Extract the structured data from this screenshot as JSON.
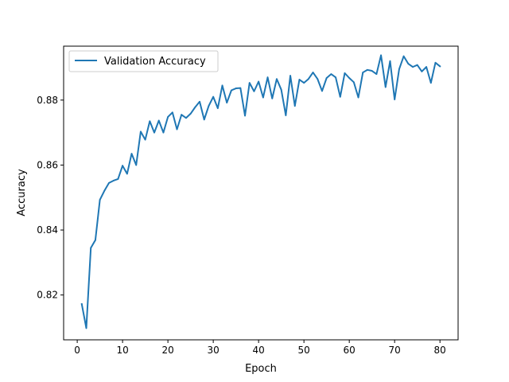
{
  "chart_data": {
    "type": "line",
    "title": "",
    "xlabel": "Epoch",
    "ylabel": "Accuracy",
    "xlim": [
      -3,
      84
    ],
    "ylim": [
      0.8062,
      0.8966
    ],
    "x_ticks": [
      0,
      10,
      20,
      30,
      40,
      50,
      60,
      70,
      80
    ],
    "y_ticks": [
      0.82,
      0.84,
      0.86,
      0.88
    ],
    "y_tick_labels": [
      "0.82",
      "0.84",
      "0.86",
      "0.88"
    ],
    "grid": false,
    "legend": {
      "position": "upper-left"
    },
    "series": [
      {
        "name": "Validation Accuracy",
        "color": "#1f77b4",
        "x": [
          1,
          2,
          3,
          4,
          5,
          6,
          7,
          8,
          9,
          10,
          11,
          12,
          13,
          14,
          15,
          16,
          17,
          18,
          19,
          20,
          21,
          22,
          23,
          24,
          25,
          26,
          27,
          28,
          29,
          30,
          31,
          32,
          33,
          34,
          35,
          36,
          37,
          38,
          39,
          40,
          41,
          42,
          43,
          44,
          45,
          46,
          47,
          48,
          49,
          50,
          51,
          52,
          53,
          54,
          55,
          56,
          57,
          58,
          59,
          60,
          61,
          62,
          63,
          64,
          65,
          66,
          67,
          68,
          69,
          70,
          71,
          72,
          73,
          74,
          75,
          76,
          77,
          78,
          79,
          80
        ],
        "values": [
          0.8172,
          0.8098,
          0.8345,
          0.8369,
          0.8493,
          0.8521,
          0.8545,
          0.8552,
          0.8557,
          0.8598,
          0.8573,
          0.8635,
          0.86,
          0.8703,
          0.8678,
          0.8735,
          0.87,
          0.8737,
          0.87,
          0.8748,
          0.8762,
          0.871,
          0.8755,
          0.8745,
          0.8758,
          0.8778,
          0.8795,
          0.874,
          0.8782,
          0.881,
          0.8775,
          0.8845,
          0.8792,
          0.883,
          0.8836,
          0.8837,
          0.8752,
          0.8853,
          0.8827,
          0.8857,
          0.8808,
          0.887,
          0.8805,
          0.8865,
          0.8832,
          0.8753,
          0.8875,
          0.8782,
          0.8863,
          0.8853,
          0.8865,
          0.8885,
          0.8865,
          0.8828,
          0.8868,
          0.888,
          0.887,
          0.881,
          0.8883,
          0.8868,
          0.8855,
          0.8808,
          0.8885,
          0.8893,
          0.889,
          0.888,
          0.8938,
          0.884,
          0.892,
          0.8802,
          0.8895,
          0.8935,
          0.8912,
          0.8902,
          0.8908,
          0.8888,
          0.8902,
          0.8853,
          0.8915,
          0.8904
        ]
      }
    ]
  }
}
